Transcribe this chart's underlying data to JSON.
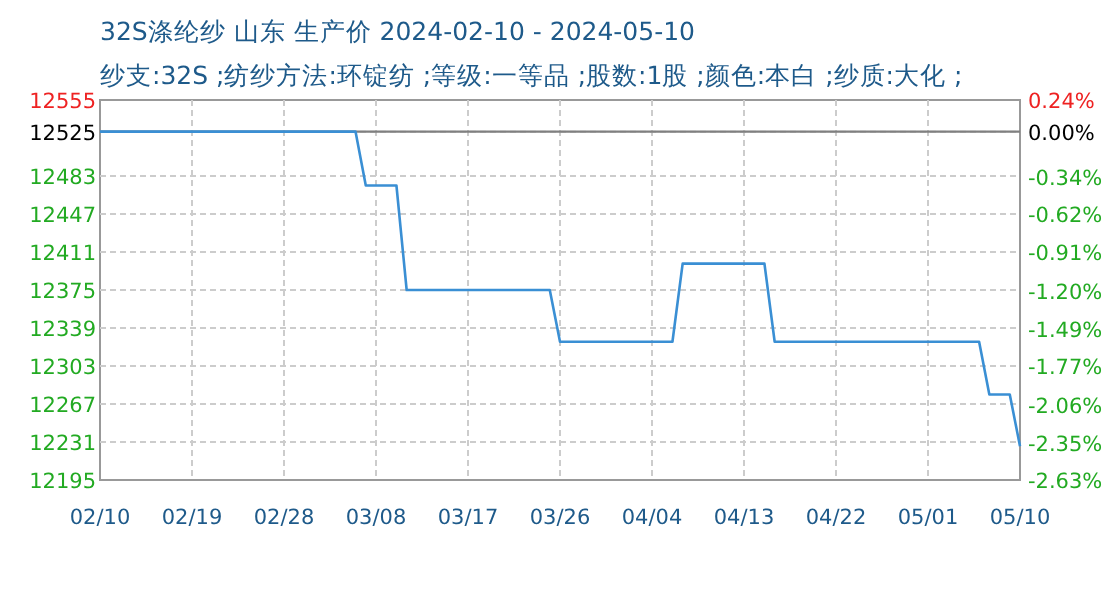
{
  "chart_data": {
    "type": "line",
    "title": "32S涤纶纱 山东 生产价 2024-02-10 - 2024-05-10",
    "subtitle": "纱支:32S ;纺纱方法:环锭纺 ;等级:一等品 ;股数:1股 ;颜色:本白 ;纱质:大化 ;",
    "x": [
      "2024-02-10",
      "2024-03-06",
      "2024-03-07",
      "2024-03-10",
      "2024-03-11",
      "2024-03-25",
      "2024-03-26",
      "2024-04-06",
      "2024-04-07",
      "2024-04-15",
      "2024-04-16",
      "2024-05-06",
      "2024-05-07",
      "2024-05-09",
      "2024-05-10"
    ],
    "series": [
      {
        "color": "#3a8fd4",
        "values": [
          12525,
          12525,
          12474,
          12474,
          12375,
          12375,
          12326,
          12326,
          12400,
          12400,
          12326,
          12326,
          12276,
          12276,
          12227
        ]
      }
    ],
    "xlim": [
      "2024-02-10",
      "2024-05-10"
    ],
    "xticks": [
      {
        "value": "2024-02-10",
        "label": "02/10"
      },
      {
        "value": "2024-02-19",
        "label": "02/19"
      },
      {
        "value": "2024-02-28",
        "label": "02/28"
      },
      {
        "value": "2024-03-08",
        "label": "03/08"
      },
      {
        "value": "2024-03-17",
        "label": "03/17"
      },
      {
        "value": "2024-03-26",
        "label": "03/26"
      },
      {
        "value": "2024-04-04",
        "label": "04/04"
      },
      {
        "value": "2024-04-13",
        "label": "04/13"
      },
      {
        "value": "2024-04-22",
        "label": "04/22"
      },
      {
        "value": "2024-05-01",
        "label": "05/01"
      },
      {
        "value": "2024-05-10",
        "label": "05/10"
      }
    ],
    "ylim": [
      12195,
      12555
    ],
    "yticks": [
      12555,
      12525,
      12483,
      12447,
      12411,
      12375,
      12339,
      12303,
      12267,
      12231,
      12195
    ],
    "y2lim": [
      -2.63,
      0.24
    ],
    "y2ticks": [
      {
        "value": 0.24,
        "label": "0.24%"
      },
      {
        "value": 0,
        "label": "0.00%"
      },
      {
        "value": -0.34,
        "label": "-0.34%"
      },
      {
        "value": -0.62,
        "label": "-0.62%"
      },
      {
        "value": -0.91,
        "label": "-0.91%"
      },
      {
        "value": -1.2,
        "label": "-1.20%"
      },
      {
        "value": -1.49,
        "label": "-1.49%"
      },
      {
        "value": -1.77,
        "label": "-1.77%"
      },
      {
        "value": -2.06,
        "label": "-2.06%"
      },
      {
        "value": -2.35,
        "label": "-2.35%"
      },
      {
        "value": -2.63,
        "label": "-2.63%"
      }
    ],
    "ref_lines": [
      {
        "axis": "y",
        "value": 12525,
        "color": "#808080"
      }
    ],
    "grid": true,
    "marker": "none",
    "line_style": "solid"
  }
}
